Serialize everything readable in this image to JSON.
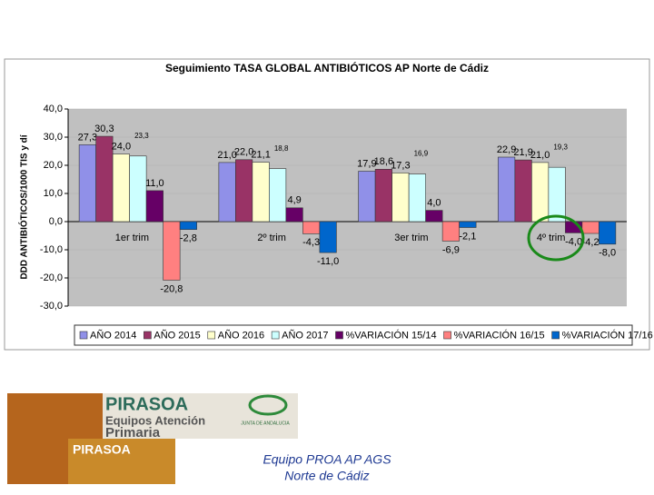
{
  "chart_data": {
    "type": "bar",
    "title": "Seguimiento TASA GLOBAL ANTIBIÓTICOS AP Norte de Cádiz",
    "y_label": "DDD ANTIBIÓTICOS/1000 TIS y dí",
    "categories": [
      "1er trim",
      "2º trim",
      "3er trim",
      "4º trim"
    ],
    "series": [
      {
        "name": "AÑO 2014",
        "color": "#9090e8",
        "values": [
          27.3,
          21.0,
          17.9,
          22.9
        ],
        "value_labels": [
          "27,3",
          "21,0",
          "17,9",
          "22,9"
        ]
      },
      {
        "name": "AÑO 2015",
        "color": "#993366",
        "values": [
          30.3,
          22.0,
          18.6,
          21.9
        ],
        "value_labels": [
          "30,3",
          "22,0",
          "18,6",
          "21,9"
        ]
      },
      {
        "name": "AÑO 2016",
        "color": "#ffffcc",
        "values": [
          24.0,
          21.1,
          17.3,
          21.0
        ],
        "value_labels": [
          "24,0",
          "21,1",
          "17,3",
          "21,0"
        ]
      },
      {
        "name": "AÑO 2017",
        "color": "#ccffff",
        "values": [
          23.3,
          18.8,
          16.9,
          19.3
        ],
        "value_labels": [
          "23,3",
          "18,8",
          "16,9",
          "19,3"
        ]
      },
      {
        "name": "%VARIACIÓN 15/14",
        "color": "#660066",
        "values": [
          11.0,
          4.9,
          4.0,
          -4.0
        ],
        "value_labels": [
          "11,0",
          "4,9",
          "4,0",
          "-4,0"
        ]
      },
      {
        "name": "%VARIACIÓN 16/15",
        "color": "#ff8080",
        "values": [
          -20.8,
          -4.3,
          -6.9,
          -4.2
        ],
        "value_labels": [
          "-20,8",
          "-4,3",
          "-6,9",
          "-4,2"
        ]
      },
      {
        "name": "%VARIACIÓN 17/16",
        "color": "#0066cc",
        "values": [
          -2.8,
          -11.0,
          -2.1,
          -8.0
        ],
        "value_labels": [
          "-2,8",
          "-11,0",
          "-2,1",
          "-8,0"
        ]
      }
    ],
    "ylim": [
      -30,
      40
    ],
    "yticks": [
      {
        "value": -30,
        "label": "-30,0"
      },
      {
        "value": -20,
        "label": "-20,0"
      },
      {
        "value": -10,
        "label": "-10,0"
      },
      {
        "value": 0,
        "label": "0,0"
      },
      {
        "value": 10,
        "label": "10,0"
      },
      {
        "value": 20,
        "label": "20,0"
      },
      {
        "value": 30,
        "label": "30,0"
      },
      {
        "value": 40,
        "label": "40,0"
      }
    ],
    "grid": true,
    "legend": "bottom"
  },
  "logo": {
    "name": "PIRASOA",
    "line1": "Equipos Atención",
    "line2": "Primaria",
    "small_name": "PIRASOA",
    "junta": "JUNTA DE ANDALUCIA"
  },
  "footer": {
    "line1": "Equipo PROA  AP  AGS",
    "line2": "Norte de Cádiz"
  }
}
